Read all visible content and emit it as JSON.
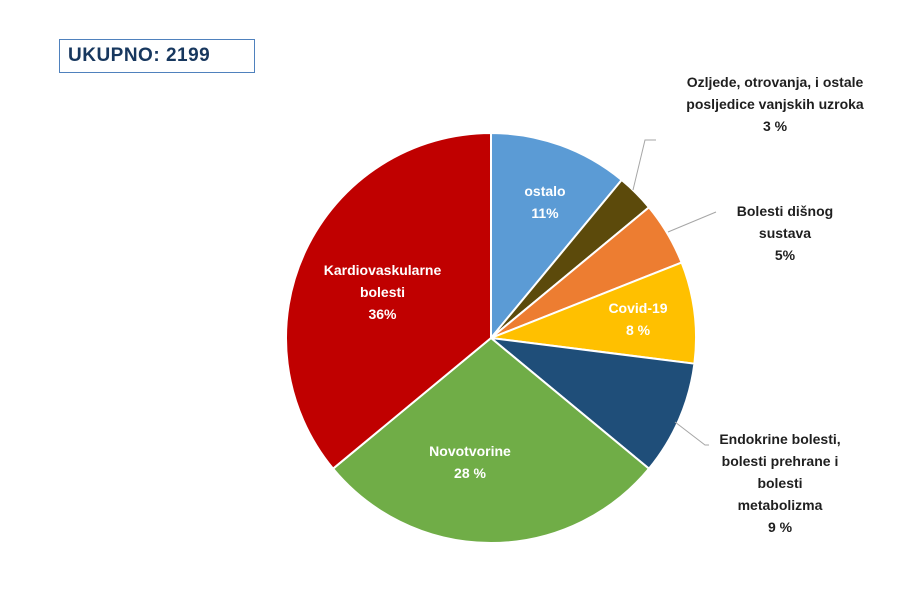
{
  "total_label": "UKUPNO: 2199",
  "chart_data": {
    "type": "pie",
    "start_angle_deg": 0,
    "direction": "clockwise",
    "slices": [
      {
        "name": "ostalo",
        "value": 11,
        "label": "11%",
        "color": "#5b9bd5"
      },
      {
        "name": "Ozljede, otrovanja, i ostale posljedice vanjskih uzroka",
        "value": 3,
        "label": "3 %",
        "color": "#5c4a0b"
      },
      {
        "name": "Bolesti dišnog sustava",
        "value": 5,
        "label": "5%",
        "color": "#ed7d31"
      },
      {
        "name": "Covid-19",
        "value": 8,
        "label": "8 %",
        "color": "#ffc000"
      },
      {
        "name": "Endokrine bolesti, bolesti prehrane i bolesti metabolizma",
        "value": 9,
        "label": "9 %",
        "color": "#1f4e79"
      },
      {
        "name": "Novotvorine",
        "value": 28,
        "label": "28 %",
        "color": "#70ad47"
      },
      {
        "name": "Kardiovaskularne bolesti",
        "value": 36,
        "label": "36%",
        "color": "#c00000"
      }
    ]
  },
  "labels": {
    "ostalo": {
      "line1": "ostalo",
      "pct": "11%"
    },
    "ozljede": {
      "line1": "Ozljede, otrovanja, i ostale",
      "line2": "posljedice vanjskih uzroka",
      "pct": "3 %"
    },
    "disni": {
      "line1": "Bolesti dišnog",
      "line2": "sustava",
      "pct": "5%"
    },
    "covid": {
      "line1": "Covid-19",
      "pct": "8 %"
    },
    "endokrine": {
      "line1": "Endokrine bolesti,",
      "line2": "bolesti prehrane i",
      "line3": "bolesti",
      "line4": "metabolizma",
      "pct": "9 %"
    },
    "novotvorine": {
      "line1": "Novotvorine",
      "pct": "28 %"
    },
    "kardio": {
      "line1": "Kardiovaskularne",
      "line2": "bolesti",
      "pct": "36%"
    }
  }
}
